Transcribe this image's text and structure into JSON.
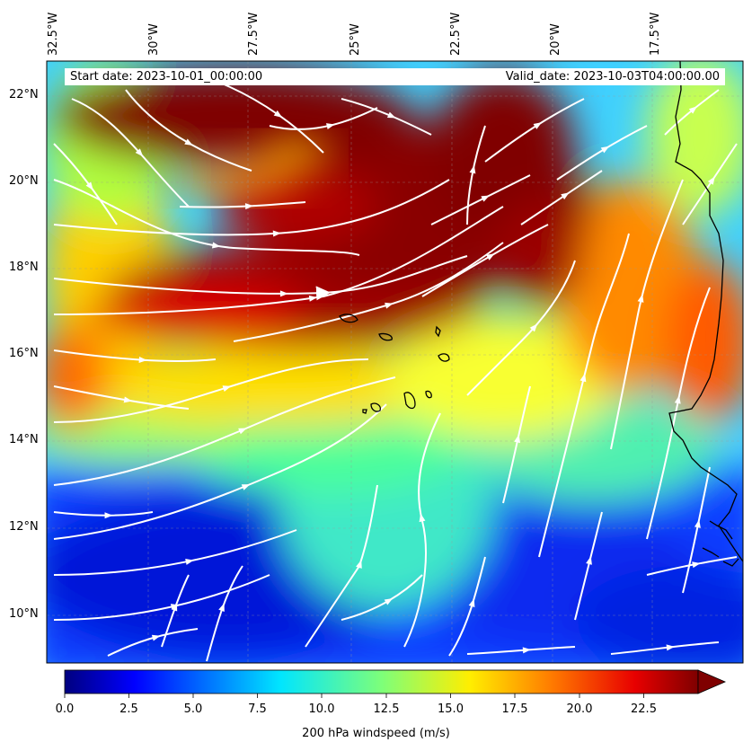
{
  "map": {
    "start_date": "Start date: 2023-10-01_00:00:00",
    "valid_date": "Valid_date: 2023-10-03T04:00:00.00",
    "lon_labels": [
      "32.5°W",
      "30°W",
      "27.5°W",
      "25°W",
      "22.5°W",
      "20°W",
      "17.5°W"
    ],
    "lat_labels": [
      "22°N",
      "20°N",
      "18°N",
      "16°N",
      "14°N",
      "12°N",
      "10°N"
    ]
  },
  "colorbar": {
    "label": "200 hPa windspeed (m/s)",
    "ticks": [
      "0.0",
      "2.5",
      "5.0",
      "7.5",
      "10.0",
      "12.5",
      "15.0",
      "17.5",
      "20.0",
      "22.5"
    ],
    "cmap": "jet",
    "extend": "max"
  },
  "colors": {
    "streamline": "#ffffff",
    "coastline": "#000000"
  }
}
